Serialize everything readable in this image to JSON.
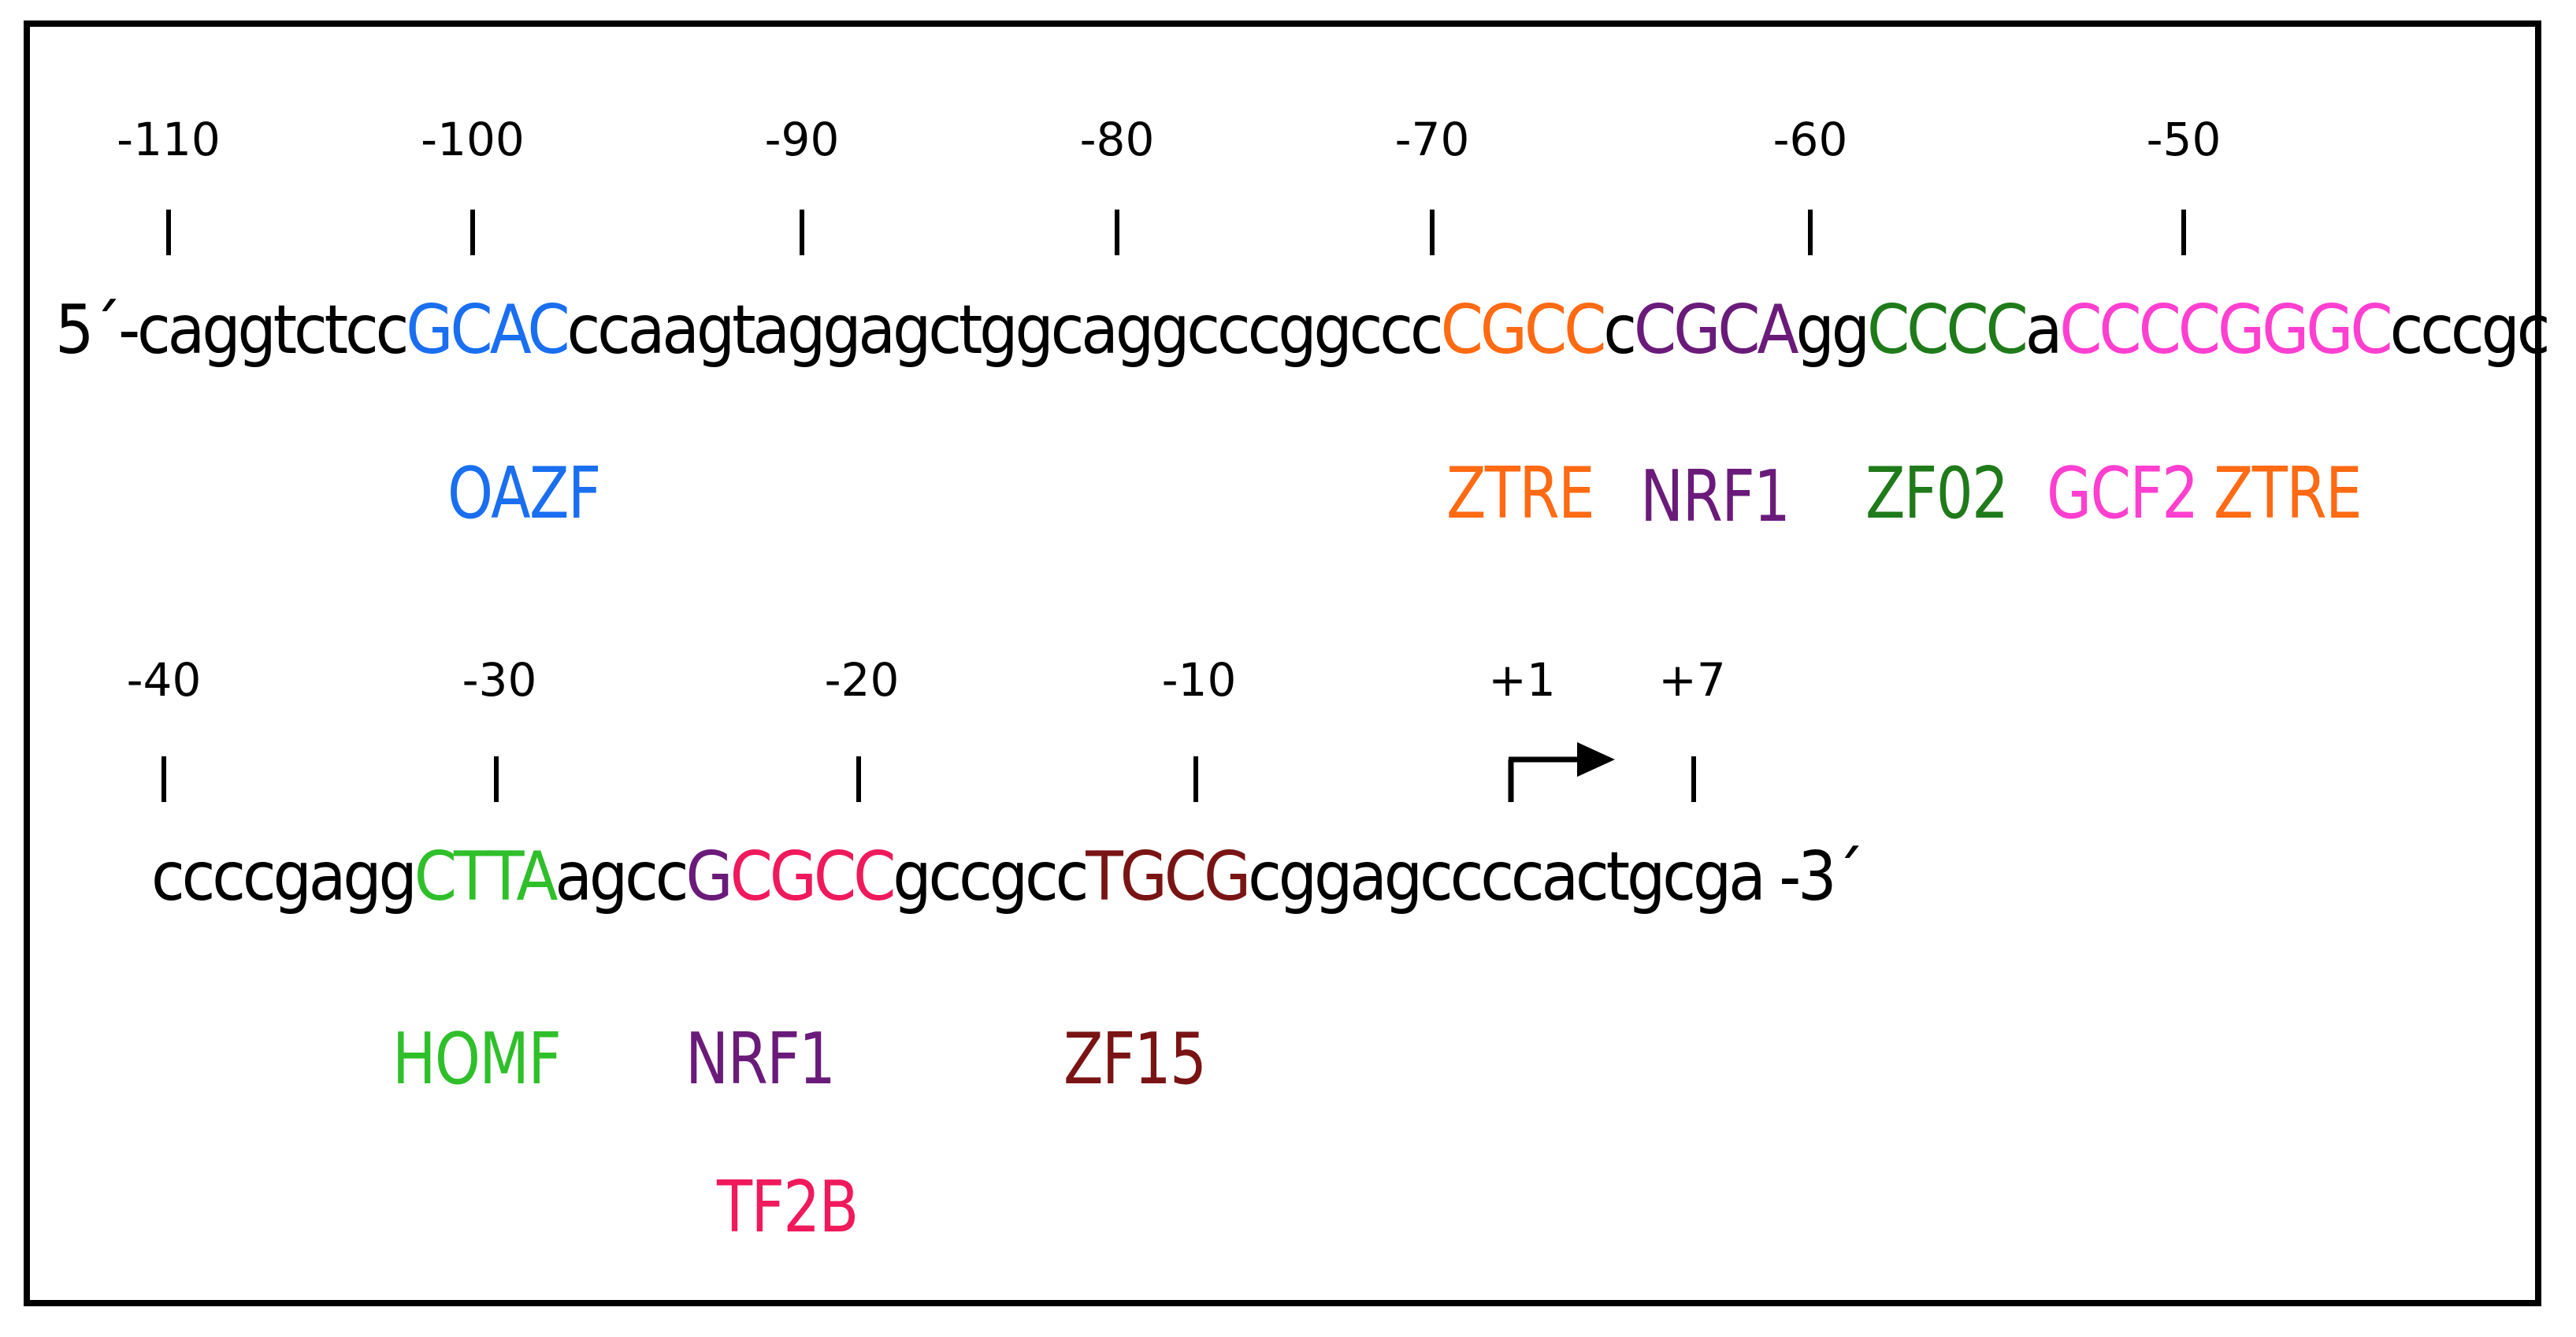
{
  "colors": {
    "OAZF": "#1a6ff0",
    "ZTRE": "#ff6a13",
    "NRF1": "#6a1b7a",
    "ZF02": "#1f7a1a",
    "GCF2": "#ff3fd0",
    "HOMF": "#2fbf2a",
    "TF2B": "#f0195c",
    "ZF15": "#7a1414"
  },
  "row1": {
    "positions": [
      "-110",
      "-100",
      "-90",
      "-80",
      "-70",
      "-60",
      "-50"
    ],
    "prefix": "5´-",
    "segments": [
      {
        "text": "caggtctcc",
        "motif": null
      },
      {
        "text": "GCAC",
        "motif": "OAZF"
      },
      {
        "text": "ccaagtaggagctggcaggcccggccc",
        "motif": null
      },
      {
        "text": "CGCC",
        "motif": "ZTRE"
      },
      {
        "text": "c",
        "motif": null
      },
      {
        "text": "CGCA",
        "motif": "NRF1"
      },
      {
        "text": "gg",
        "motif": null
      },
      {
        "text": "CCCC",
        "motif": "ZF02"
      },
      {
        "text": "a",
        "motif": null
      },
      {
        "text": "CCCCGGGC",
        "motif": "GCF2"
      },
      {
        "text": "cccgc",
        "motif": null
      }
    ],
    "labels": [
      "OAZF",
      "ZTRE",
      "NRF1",
      "ZF02",
      "GCF2",
      "ZTRE"
    ]
  },
  "row2": {
    "positions": [
      "-40",
      "-30",
      "-20",
      "-10",
      "+1",
      "+7"
    ],
    "suffix": " -3´",
    "segments": [
      {
        "text": "ccccgagg",
        "motif": null
      },
      {
        "text": "CTTA",
        "motif": "HOMF"
      },
      {
        "text": "agcc",
        "motif": null
      },
      {
        "text": "G",
        "motif": "NRF1"
      },
      {
        "text": "CGCC",
        "motif": "TF2B"
      },
      {
        "text": "gccgcc",
        "motif": null
      },
      {
        "text": "TGCG",
        "motif": "ZF15"
      },
      {
        "text": "cggagccccactgcga",
        "motif": null
      }
    ],
    "labels": [
      "HOMF",
      "NRF1",
      "ZF15",
      "TF2B"
    ]
  }
}
